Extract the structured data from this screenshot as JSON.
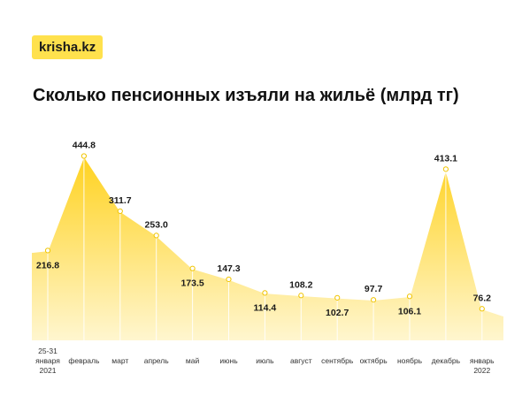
{
  "brand": {
    "logo_text": "krisha.kz"
  },
  "chart_data": {
    "type": "area",
    "title": "Сколько пенсионных изъяли на жильё (млрд тг)",
    "categories": [
      [
        "25-31",
        "января",
        "2021"
      ],
      [
        "февраль"
      ],
      [
        "март"
      ],
      [
        "апрель"
      ],
      [
        "май"
      ],
      [
        "июнь"
      ],
      [
        "июль"
      ],
      [
        "август"
      ],
      [
        "сентябрь"
      ],
      [
        "октябрь"
      ],
      [
        "ноябрь"
      ],
      [
        "декабрь"
      ],
      [
        "январь",
        "2022"
      ]
    ],
    "values": [
      216.8,
      444.8,
      311.7,
      253.0,
      173.5,
      147.3,
      114.4,
      108.2,
      102.7,
      97.7,
      106.1,
      413.1,
      76.2
    ],
    "value_labels": [
      "216.8",
      "444.8",
      "311.7",
      "253.0",
      "173.5",
      "147.3",
      "114.4",
      "108.2",
      "102.7",
      "97.7",
      "106.1",
      "413.1",
      "76.2"
    ],
    "ylim": [
      0,
      480
    ],
    "grid": "vertical",
    "colors": {
      "fill_top": "#ffd21f",
      "fill_bottom": "#fff6cf",
      "line": "#ffffff",
      "grid": "#ffffff"
    }
  }
}
